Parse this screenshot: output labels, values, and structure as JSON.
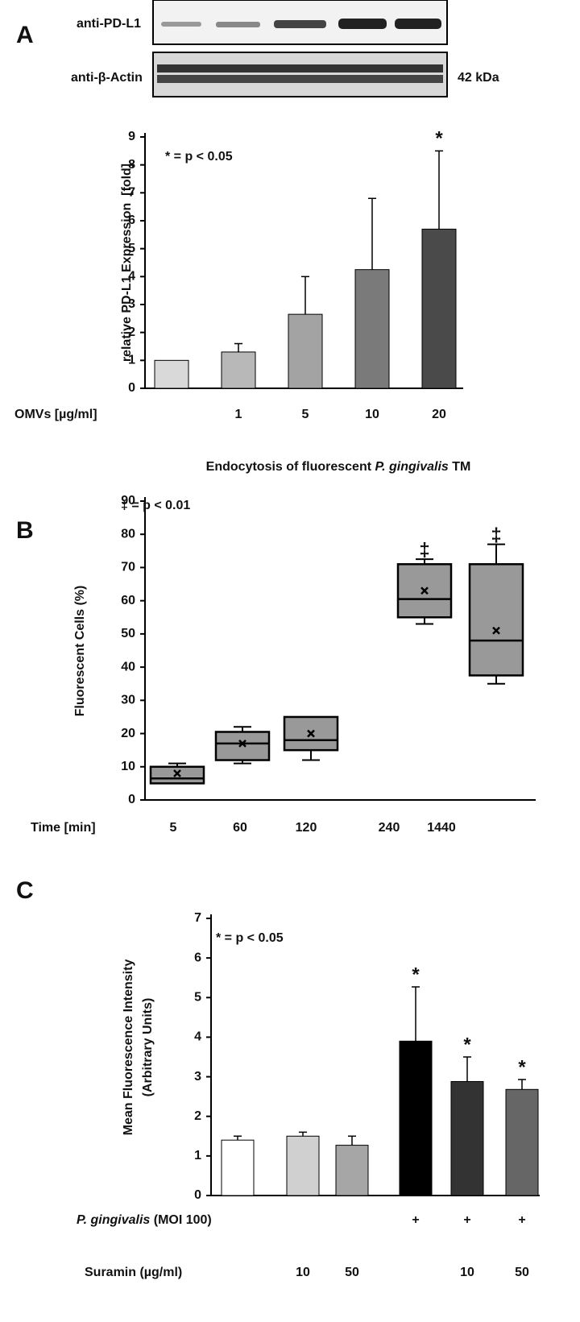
{
  "panel_labels": [
    "A",
    "B",
    "C"
  ],
  "blot": {
    "rows": [
      "anti-PD-L1",
      "anti-β-Actin"
    ],
    "marker": "42 kDa"
  },
  "chart_data": [
    {
      "type": "bar",
      "ylabel": "relative PD-L1 Expression  [fold]",
      "annotation": "* = p < 0.05",
      "xlabel": "OMVs [µg/ml]",
      "categories": [
        null,
        "1",
        "5",
        "10",
        "20"
      ],
      "values": [
        1,
        1.3,
        2.65,
        4.25,
        5.7
      ],
      "errors": [
        null,
        0.3,
        1.35,
        2.55,
        2.8
      ],
      "colors": [
        "#d9d9d9",
        "#b8b8b8",
        "#a3a3a3",
        "#7a7a7a",
        "#4a4a4a"
      ],
      "markers": [
        null,
        null,
        null,
        null,
        "*"
      ],
      "ylim": [
        0,
        9
      ],
      "yticks": [
        0,
        1,
        2,
        3,
        4,
        5,
        6,
        7,
        8,
        9
      ]
    },
    {
      "type": "box",
      "title_parts": [
        "Endocytosis of fluorescent ",
        "P. gingivalis",
        " TM"
      ],
      "ylabel": "Fluorescent Cells (%)",
      "annotation": "‡ = p < 0.01",
      "xlabel": "Time [min]",
      "categories": [
        "5",
        "60",
        "120",
        "240",
        "1440"
      ],
      "color": "#999999",
      "boxes": [
        {
          "min": 5,
          "q1": 5,
          "median": 6.5,
          "q3": 10,
          "max": 11,
          "mean": 8
        },
        {
          "min": 11,
          "q1": 12,
          "median": 17,
          "q3": 20.5,
          "max": 22,
          "mean": 17
        },
        {
          "min": 12,
          "q1": 15,
          "median": 18,
          "q3": 25,
          "max": 25,
          "mean": 20
        },
        {
          "min": 53,
          "q1": 55,
          "median": 60.5,
          "q3": 71,
          "max": 72.5,
          "mean": 63
        },
        {
          "min": 35,
          "q1": 37.5,
          "median": 48,
          "q3": 71,
          "max": 77,
          "mean": 51
        }
      ],
      "markers": [
        null,
        null,
        null,
        "‡",
        "‡"
      ],
      "ylim": [
        0,
        90
      ],
      "yticks": [
        0,
        10,
        20,
        30,
        40,
        50,
        60,
        70,
        80,
        90
      ]
    },
    {
      "type": "bar",
      "ylabel_lines": [
        "Mean Fluorescence Intensity",
        "(Arbitrary Units)"
      ],
      "annotation": "* = p < 0.05",
      "values": [
        1.4,
        1.5,
        1.27,
        3.9,
        2.88,
        2.68
      ],
      "errors": [
        0.1,
        0.1,
        0.23,
        1.37,
        0.62,
        0.25
      ],
      "colors": [
        "#ffffff",
        "#d0d0d0",
        "#a6a6a6",
        "#000000",
        "#333333",
        "#666666"
      ],
      "markers": [
        null,
        null,
        null,
        "*",
        "*",
        "*"
      ],
      "rows": [
        {
          "label_parts": [
            "P. gingivalis",
            " (MOI 100)"
          ],
          "labels": [
            null,
            null,
            null,
            "+",
            "+",
            "+"
          ]
        },
        {
          "label": "Suramin (µg/ml)",
          "labels": [
            null,
            "10",
            "50",
            null,
            "10",
            "50"
          ]
        }
      ],
      "ylim": [
        0,
        7
      ],
      "yticks": [
        0,
        1,
        2,
        3,
        4,
        5,
        6,
        7
      ]
    }
  ]
}
